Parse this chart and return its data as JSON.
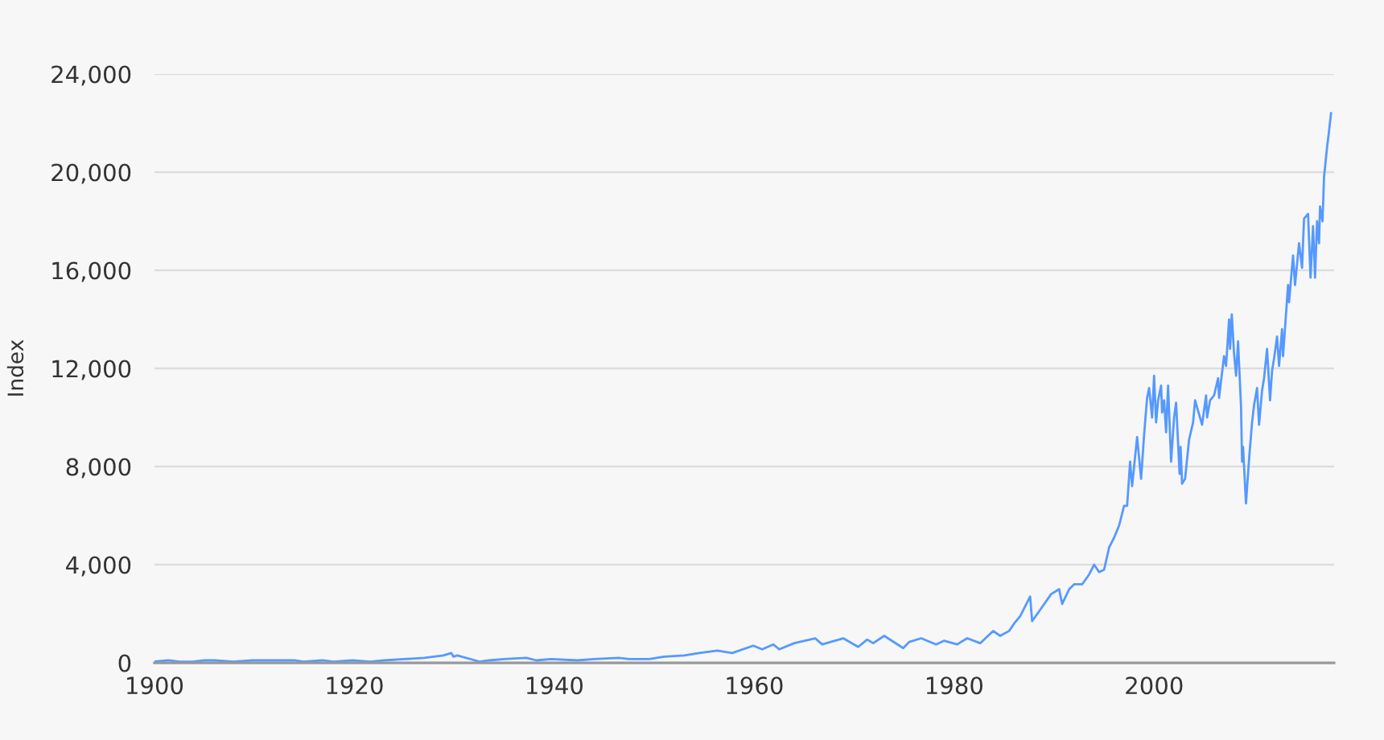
{
  "chart_data": {
    "type": "line",
    "ylabel": "Index",
    "x": [
      1900.0,
      1901.4,
      1902.5,
      1903.8,
      1905.0,
      1906.0,
      1907.9,
      1909.8,
      1911.5,
      1914.0,
      1914.9,
      1916.8,
      1917.9,
      1919.8,
      1921.6,
      1923.0,
      1925.0,
      1927.0,
      1928.9,
      1929.7,
      1929.9,
      1930.3,
      1932.5,
      1933.5,
      1935.0,
      1937.2,
      1938.2,
      1939.7,
      1942.3,
      1944.0,
      1946.4,
      1947.5,
      1949.5,
      1951.0,
      1953.0,
      1954.5,
      1956.3,
      1957.8,
      1959.9,
      1960.8,
      1961.9,
      1962.5,
      1964.0,
      1966.1,
      1966.8,
      1968.9,
      1970.4,
      1971.3,
      1971.9,
      1973.0,
      1974.9,
      1975.5,
      1976.7,
      1978.2,
      1979.0,
      1980.3,
      1981.3,
      1982.6,
      1983.9,
      1984.6,
      1985.5,
      1986.0,
      1986.6,
      1987.6,
      1987.8,
      1988.5,
      1989.7,
      1990.5,
      1990.8,
      1991.5,
      1992.0,
      1992.8,
      1993.5,
      1994.0,
      1994.5,
      1995.0,
      1995.5,
      1996.0,
      1996.5,
      1997.0,
      1997.3,
      1997.6,
      1997.8,
      1998.3,
      1998.7,
      1999.0,
      1999.3,
      1999.5,
      1999.8,
      2000.0,
      2000.2,
      2000.4,
      2000.7,
      2000.8,
      2001.0,
      2001.2,
      2001.4,
      2001.7,
      2002.0,
      2002.2,
      2002.55,
      2002.65,
      2002.8,
      2003.1,
      2003.5,
      2003.9,
      2004.1,
      2004.8,
      2005.2,
      2005.3,
      2005.6,
      2006.0,
      2006.4,
      2006.5,
      2006.7,
      2007.0,
      2007.2,
      2007.5,
      2007.6,
      2007.77,
      2008.0,
      2008.2,
      2008.4,
      2008.7,
      2008.8,
      2008.9,
      2009.19,
      2009.5,
      2009.8,
      2010.0,
      2010.3,
      2010.5,
      2010.8,
      2011.0,
      2011.3,
      2011.6,
      2011.8,
      2012.0,
      2012.3,
      2012.5,
      2012.8,
      2012.9,
      2013.4,
      2013.5,
      2013.9,
      2014.1,
      2014.5,
      2014.8,
      2015.0,
      2015.4,
      2015.65,
      2015.9,
      2016.1,
      2016.3,
      2016.5,
      2016.6,
      2016.85,
      2017.0,
      2017.3,
      2017.45,
      2017.7
    ],
    "series": [
      {
        "color": "#5599ff",
        "values": [
          50,
          100,
          50,
          50,
          100,
          100,
          50,
          100,
          100,
          100,
          50,
          100,
          50,
          100,
          50,
          100,
          150,
          200,
          300,
          400,
          250,
          300,
          50,
          100,
          150,
          200,
          100,
          150,
          100,
          150,
          200,
          150,
          150,
          250,
          300,
          400,
          500,
          400,
          700,
          550,
          750,
          550,
          800,
          1000,
          750,
          1000,
          650,
          950,
          800,
          1100,
          600,
          850,
          1000,
          750,
          900,
          750,
          1000,
          800,
          1300,
          1100,
          1300,
          1600,
          1900,
          2700,
          1700,
          2100,
          2800,
          3000,
          2400,
          3000,
          3200,
          3200,
          3600,
          4000,
          3700,
          3800,
          4700,
          5100,
          5600,
          6400,
          6400,
          8200,
          7200,
          9200,
          7500,
          9300,
          10800,
          11200,
          10000,
          11700,
          9800,
          10700,
          11300,
          10200,
          10700,
          9400,
          11300,
          8200,
          10000,
          10600,
          7700,
          8800,
          7300,
          7500,
          9100,
          9800,
          10700,
          9700,
          10900,
          10000,
          10700,
          10900,
          11600,
          10800,
          11500,
          12500,
          12100,
          14000,
          12800,
          14200,
          12600,
          11700,
          13100,
          10400,
          8200,
          8800,
          6500,
          8300,
          9800,
          10500,
          11200,
          9700,
          11100,
          11600,
          12800,
          10700,
          11900,
          12400,
          13300,
          12100,
          13600,
          12500,
          15400,
          14700,
          16600,
          15400,
          17100,
          16100,
          18100,
          18300,
          15700,
          17800,
          15700,
          18000,
          17100,
          18600,
          18000,
          19800,
          21000,
          21500,
          22400
        ]
      }
    ],
    "xlim": [
      1900,
      2018
    ],
    "xticks": [
      1900,
      1920,
      1940,
      1960,
      1980,
      2000
    ],
    "ylim": [
      0,
      24000
    ],
    "yticks": [
      0,
      {
        "value": 4000,
        "label": "4,000"
      },
      {
        "value": 8000,
        "label": "8,000"
      },
      {
        "value": 12000,
        "label": "12,000"
      },
      {
        "value": 16000,
        "label": "16,000"
      },
      {
        "value": 20000,
        "label": "20,000"
      },
      {
        "value": 24000,
        "label": "24,000"
      }
    ],
    "grid": "y"
  }
}
